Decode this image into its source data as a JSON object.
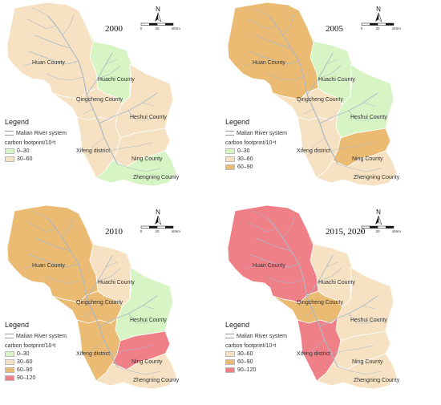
{
  "colors": {
    "c0_30": "#d7f4c4",
    "c30_60": "#f6e2c3",
    "c60_90": "#ebbb74",
    "c90_120": "#ef8088",
    "river": "#a9b8c6",
    "border": "#ffffff"
  },
  "county_names": {
    "huan": "Huan County",
    "huachi": "Huachi County",
    "qingcheng": "Qingcheng County",
    "heshui": "Heshui County",
    "xifeng": "Xifeng district",
    "ning": "Ning County",
    "zhengning": "Zhengning County"
  },
  "compass": {
    "letter": "N"
  },
  "scale": {
    "ticks": [
      "0",
      "20",
      "40"
    ],
    "unit": "km"
  },
  "legend": {
    "title": "Legend",
    "river_label": "Malian River system",
    "footprint_label": "carbon footprint/10⁴t"
  },
  "panels": [
    {
      "year": "2000",
      "legend_items": [
        {
          "label": "0–30",
          "color": "#d7f4c4"
        },
        {
          "label": "30–60",
          "color": "#f6e2c3"
        }
      ],
      "fills": {
        "huan": "#f6e2c3",
        "huachi": "#d7f4c4",
        "qingcheng": "#f6e2c3",
        "heshui": "#f6e2c3",
        "xifeng": "#f6e2c3",
        "ning": "#f6e2c3",
        "zhengning": "#d7f4c4"
      }
    },
    {
      "year": "2005",
      "legend_items": [
        {
          "label": "0–30",
          "color": "#d7f4c4"
        },
        {
          "label": "30–60",
          "color": "#f6e2c3"
        },
        {
          "label": "60–90",
          "color": "#ebbb74"
        }
      ],
      "fills": {
        "huan": "#ebbb74",
        "huachi": "#d7f4c4",
        "qingcheng": "#f6e2c3",
        "heshui": "#d7f4c4",
        "xifeng": "#f6e2c3",
        "ning": "#ebbb74",
        "zhengning": "#f6e2c3"
      }
    },
    {
      "year": "2010",
      "legend_items": [
        {
          "label": "0–30",
          "color": "#d7f4c4"
        },
        {
          "label": "30–60",
          "color": "#f6e2c3"
        },
        {
          "label": "60–90",
          "color": "#ebbb74"
        },
        {
          "label": "90–120",
          "color": "#ef8088"
        }
      ],
      "fills": {
        "huan": "#ebbb74",
        "huachi": "#f6e2c3",
        "qingcheng": "#ebbb74",
        "heshui": "#d7f4c4",
        "xifeng": "#ebbb74",
        "ning": "#ef8088",
        "zhengning": "#f6e2c3"
      }
    },
    {
      "year": "2015, 2020",
      "legend_items": [
        {
          "label": "30–60",
          "color": "#f6e2c3"
        },
        {
          "label": "60–90",
          "color": "#ebbb74"
        },
        {
          "label": "90–120",
          "color": "#ef8088"
        }
      ],
      "fills": {
        "huan": "#ef8088",
        "huachi": "#f6e2c3",
        "qingcheng": "#ebbb74",
        "heshui": "#f6e2c3",
        "xifeng": "#ef8088",
        "ning": "#f6e2c3",
        "zhengning": "#f6e2c3"
      }
    }
  ]
}
